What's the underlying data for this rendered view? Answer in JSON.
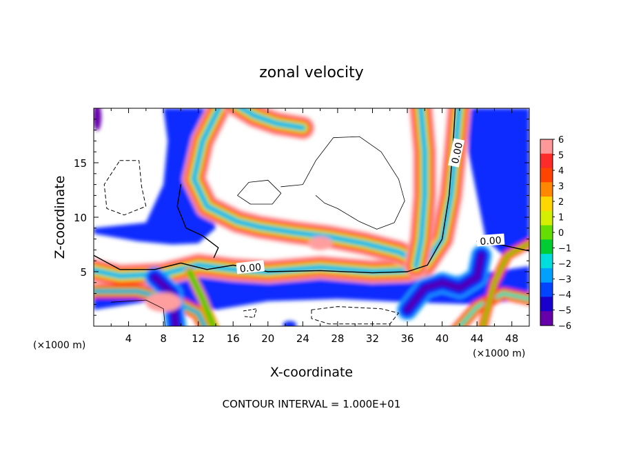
{
  "chart_data": {
    "type": "heatmap",
    "title": "zonal velocity",
    "xlabel": "X-coordinate",
    "ylabel": "Z-coordinate",
    "x_unit_note": "(×1000 m)",
    "footer": "CONTOUR INTERVAL = 1.000E+01",
    "xlim": [
      0,
      50
    ],
    "ylim": [
      0,
      20
    ],
    "x_ticks": [
      4,
      8,
      12,
      16,
      20,
      24,
      28,
      32,
      36,
      40,
      44,
      48
    ],
    "x_tick_labels": [
      "4",
      "8",
      "12",
      "16",
      "20",
      "24",
      "28",
      "32",
      "36",
      "40",
      "44",
      "48"
    ],
    "y_ticks": [
      5,
      10,
      15
    ],
    "y_tick_labels": [
      "5",
      "10",
      "15"
    ],
    "colorbar": {
      "levels": [
        6,
        5,
        4,
        3,
        2,
        1,
        0,
        -1,
        -2,
        -3,
        -4,
        -5,
        -6
      ],
      "labels": [
        "6",
        "5",
        "4",
        "3",
        "2",
        "1",
        "0",
        "−1",
        "−2",
        "−3",
        "−4",
        "−5",
        "−6"
      ],
      "colors": [
        "#ff9999",
        "#ff2a2a",
        "#ff4400",
        "#ff8800",
        "#ffd700",
        "#d4f000",
        "#66dd00",
        "#00cc33",
        "#00dddd",
        "#00a0ff",
        "#0044ff",
        "#1a00cc",
        "#6600aa"
      ],
      "range": [
        -6,
        6
      ]
    },
    "contour_labels": [
      "0.00",
      "0.00",
      "0.00"
    ],
    "palette": {
      "pink": "#ff9e9e",
      "red": "#ff2020",
      "orange": "#ff8c00",
      "yellow": "#ffe000",
      "green": "#33cc00",
      "cyan": "#00e5ee",
      "lightblue": "#1ea0ff",
      "blue": "#0a2cff",
      "darkblue": "#1a00cc",
      "purple": "#6600aa",
      "white": "#ffffff"
    }
  }
}
